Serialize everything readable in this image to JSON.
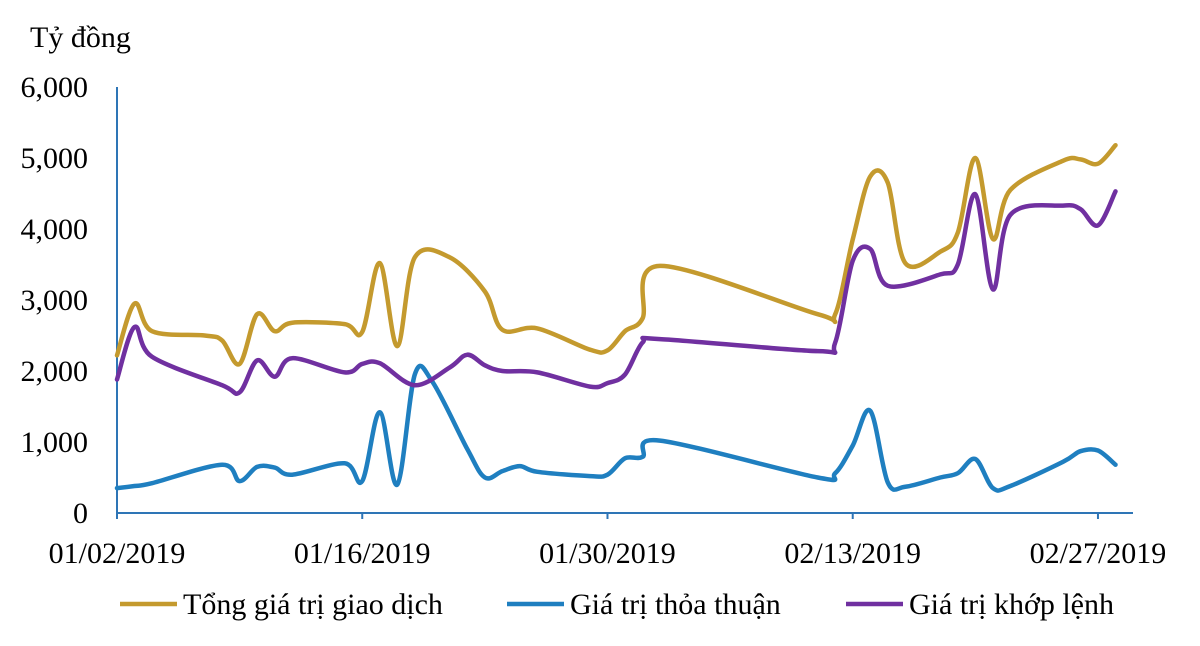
{
  "chart_data": {
    "type": "line",
    "ylabel": "Tỷ đồng",
    "ylim": [
      0,
      6000
    ],
    "yticks": [
      "0",
      "1,000",
      "2,000",
      "3,000",
      "4,000",
      "5,000",
      "6,000"
    ],
    "ytick_values": [
      0,
      1000,
      2000,
      3000,
      4000,
      5000,
      6000
    ],
    "xlim": [
      "2019-01-02",
      "2019-03-01"
    ],
    "xticks": [
      "01/02/2019",
      "01/16/2019",
      "01/30/2019",
      "02/13/2019",
      "02/27/2019"
    ],
    "xtick_dates": [
      "2019-01-02",
      "2019-01-16",
      "2019-01-30",
      "2019-02-13",
      "2019-02-27"
    ],
    "legend_position": "bottom",
    "grid": false,
    "series": [
      {
        "name": "Tổng giá trị giao dịch",
        "color": "#C49A2E",
        "points": [
          [
            "2019-01-02",
            2220
          ],
          [
            "2019-01-03",
            2950
          ],
          [
            "2019-01-04",
            2560
          ],
          [
            "2019-01-07",
            2500
          ],
          [
            "2019-01-08",
            2430
          ],
          [
            "2019-01-09",
            2100
          ],
          [
            "2019-01-10",
            2800
          ],
          [
            "2019-01-11",
            2560
          ],
          [
            "2019-01-12",
            2680
          ],
          [
            "2019-01-15",
            2660
          ],
          [
            "2019-01-16",
            2550
          ],
          [
            "2019-01-17",
            3520
          ],
          [
            "2019-01-18",
            2350
          ],
          [
            "2019-01-19",
            3600
          ],
          [
            "2019-01-21",
            3600
          ],
          [
            "2019-01-23",
            3120
          ],
          [
            "2019-01-24",
            2580
          ],
          [
            "2019-01-26",
            2600
          ],
          [
            "2019-01-29",
            2300
          ],
          [
            "2019-01-30",
            2290
          ],
          [
            "2019-01-31",
            2560
          ],
          [
            "2019-02-01",
            2740
          ],
          [
            "2019-02-02",
            3480
          ],
          [
            "2019-02-11",
            2800
          ],
          [
            "2019-02-12",
            2800
          ],
          [
            "2019-02-13",
            3850
          ],
          [
            "2019-02-14",
            4740
          ],
          [
            "2019-02-15",
            4650
          ],
          [
            "2019-02-16",
            3520
          ],
          [
            "2019-02-18",
            3680
          ],
          [
            "2019-02-19",
            3950
          ],
          [
            "2019-02-20",
            5000
          ],
          [
            "2019-02-21",
            3860
          ],
          [
            "2019-02-22",
            4550
          ],
          [
            "2019-02-25",
            4960
          ],
          [
            "2019-02-26",
            4980
          ],
          [
            "2019-02-27",
            4920
          ],
          [
            "2019-02-28",
            5180
          ]
        ]
      },
      {
        "name": "Giá trị thỏa thuận",
        "color": "#1F7FC0",
        "points": [
          [
            "2019-01-02",
            350
          ],
          [
            "2019-01-03",
            380
          ],
          [
            "2019-01-04",
            420
          ],
          [
            "2019-01-08",
            680
          ],
          [
            "2019-01-09",
            450
          ],
          [
            "2019-01-10",
            650
          ],
          [
            "2019-01-11",
            640
          ],
          [
            "2019-01-12",
            540
          ],
          [
            "2019-01-15",
            700
          ],
          [
            "2019-01-16",
            450
          ],
          [
            "2019-01-17",
            1420
          ],
          [
            "2019-01-18",
            400
          ],
          [
            "2019-01-19",
            1950
          ],
          [
            "2019-01-20",
            1850
          ],
          [
            "2019-01-22",
            900
          ],
          [
            "2019-01-23",
            500
          ],
          [
            "2019-01-24",
            590
          ],
          [
            "2019-01-25",
            660
          ],
          [
            "2019-01-26",
            580
          ],
          [
            "2019-01-29",
            520
          ],
          [
            "2019-01-30",
            540
          ],
          [
            "2019-01-31",
            770
          ],
          [
            "2019-02-01",
            790
          ],
          [
            "2019-02-02",
            1020
          ],
          [
            "2019-02-11",
            500
          ],
          [
            "2019-02-12",
            560
          ],
          [
            "2019-02-13",
            950
          ],
          [
            "2019-02-14",
            1440
          ],
          [
            "2019-02-15",
            430
          ],
          [
            "2019-02-16",
            370
          ],
          [
            "2019-02-18",
            500
          ],
          [
            "2019-02-19",
            560
          ],
          [
            "2019-02-20",
            760
          ],
          [
            "2019-02-21",
            350
          ],
          [
            "2019-02-22",
            380
          ],
          [
            "2019-02-25",
            720
          ],
          [
            "2019-02-26",
            870
          ],
          [
            "2019-02-27",
            880
          ],
          [
            "2019-02-28",
            680
          ]
        ]
      },
      {
        "name": "Giá trị khớp lệnh",
        "color": "#7030A0",
        "points": [
          [
            "2019-01-02",
            1880
          ],
          [
            "2019-01-03",
            2620
          ],
          [
            "2019-01-04",
            2200
          ],
          [
            "2019-01-08",
            1800
          ],
          [
            "2019-01-09",
            1700
          ],
          [
            "2019-01-10",
            2150
          ],
          [
            "2019-01-11",
            1920
          ],
          [
            "2019-01-12",
            2180
          ],
          [
            "2019-01-15",
            1980
          ],
          [
            "2019-01-16",
            2100
          ],
          [
            "2019-01-17",
            2110
          ],
          [
            "2019-01-19",
            1800
          ],
          [
            "2019-01-21",
            2050
          ],
          [
            "2019-01-22",
            2230
          ],
          [
            "2019-01-23",
            2080
          ],
          [
            "2019-01-24",
            2000
          ],
          [
            "2019-01-26",
            1980
          ],
          [
            "2019-01-29",
            1780
          ],
          [
            "2019-01-30",
            1830
          ],
          [
            "2019-01-31",
            1950
          ],
          [
            "2019-02-01",
            2400
          ],
          [
            "2019-02-02",
            2450
          ],
          [
            "2019-02-11",
            2280
          ],
          [
            "2019-02-12",
            2400
          ],
          [
            "2019-02-13",
            3550
          ],
          [
            "2019-02-14",
            3720
          ],
          [
            "2019-02-15",
            3200
          ],
          [
            "2019-02-18",
            3360
          ],
          [
            "2019-02-19",
            3500
          ],
          [
            "2019-02-20",
            4490
          ],
          [
            "2019-02-21",
            3150
          ],
          [
            "2019-02-22",
            4200
          ],
          [
            "2019-02-25",
            4330
          ],
          [
            "2019-02-26",
            4280
          ],
          [
            "2019-02-27",
            4050
          ],
          [
            "2019-02-28",
            4530
          ]
        ]
      }
    ]
  }
}
